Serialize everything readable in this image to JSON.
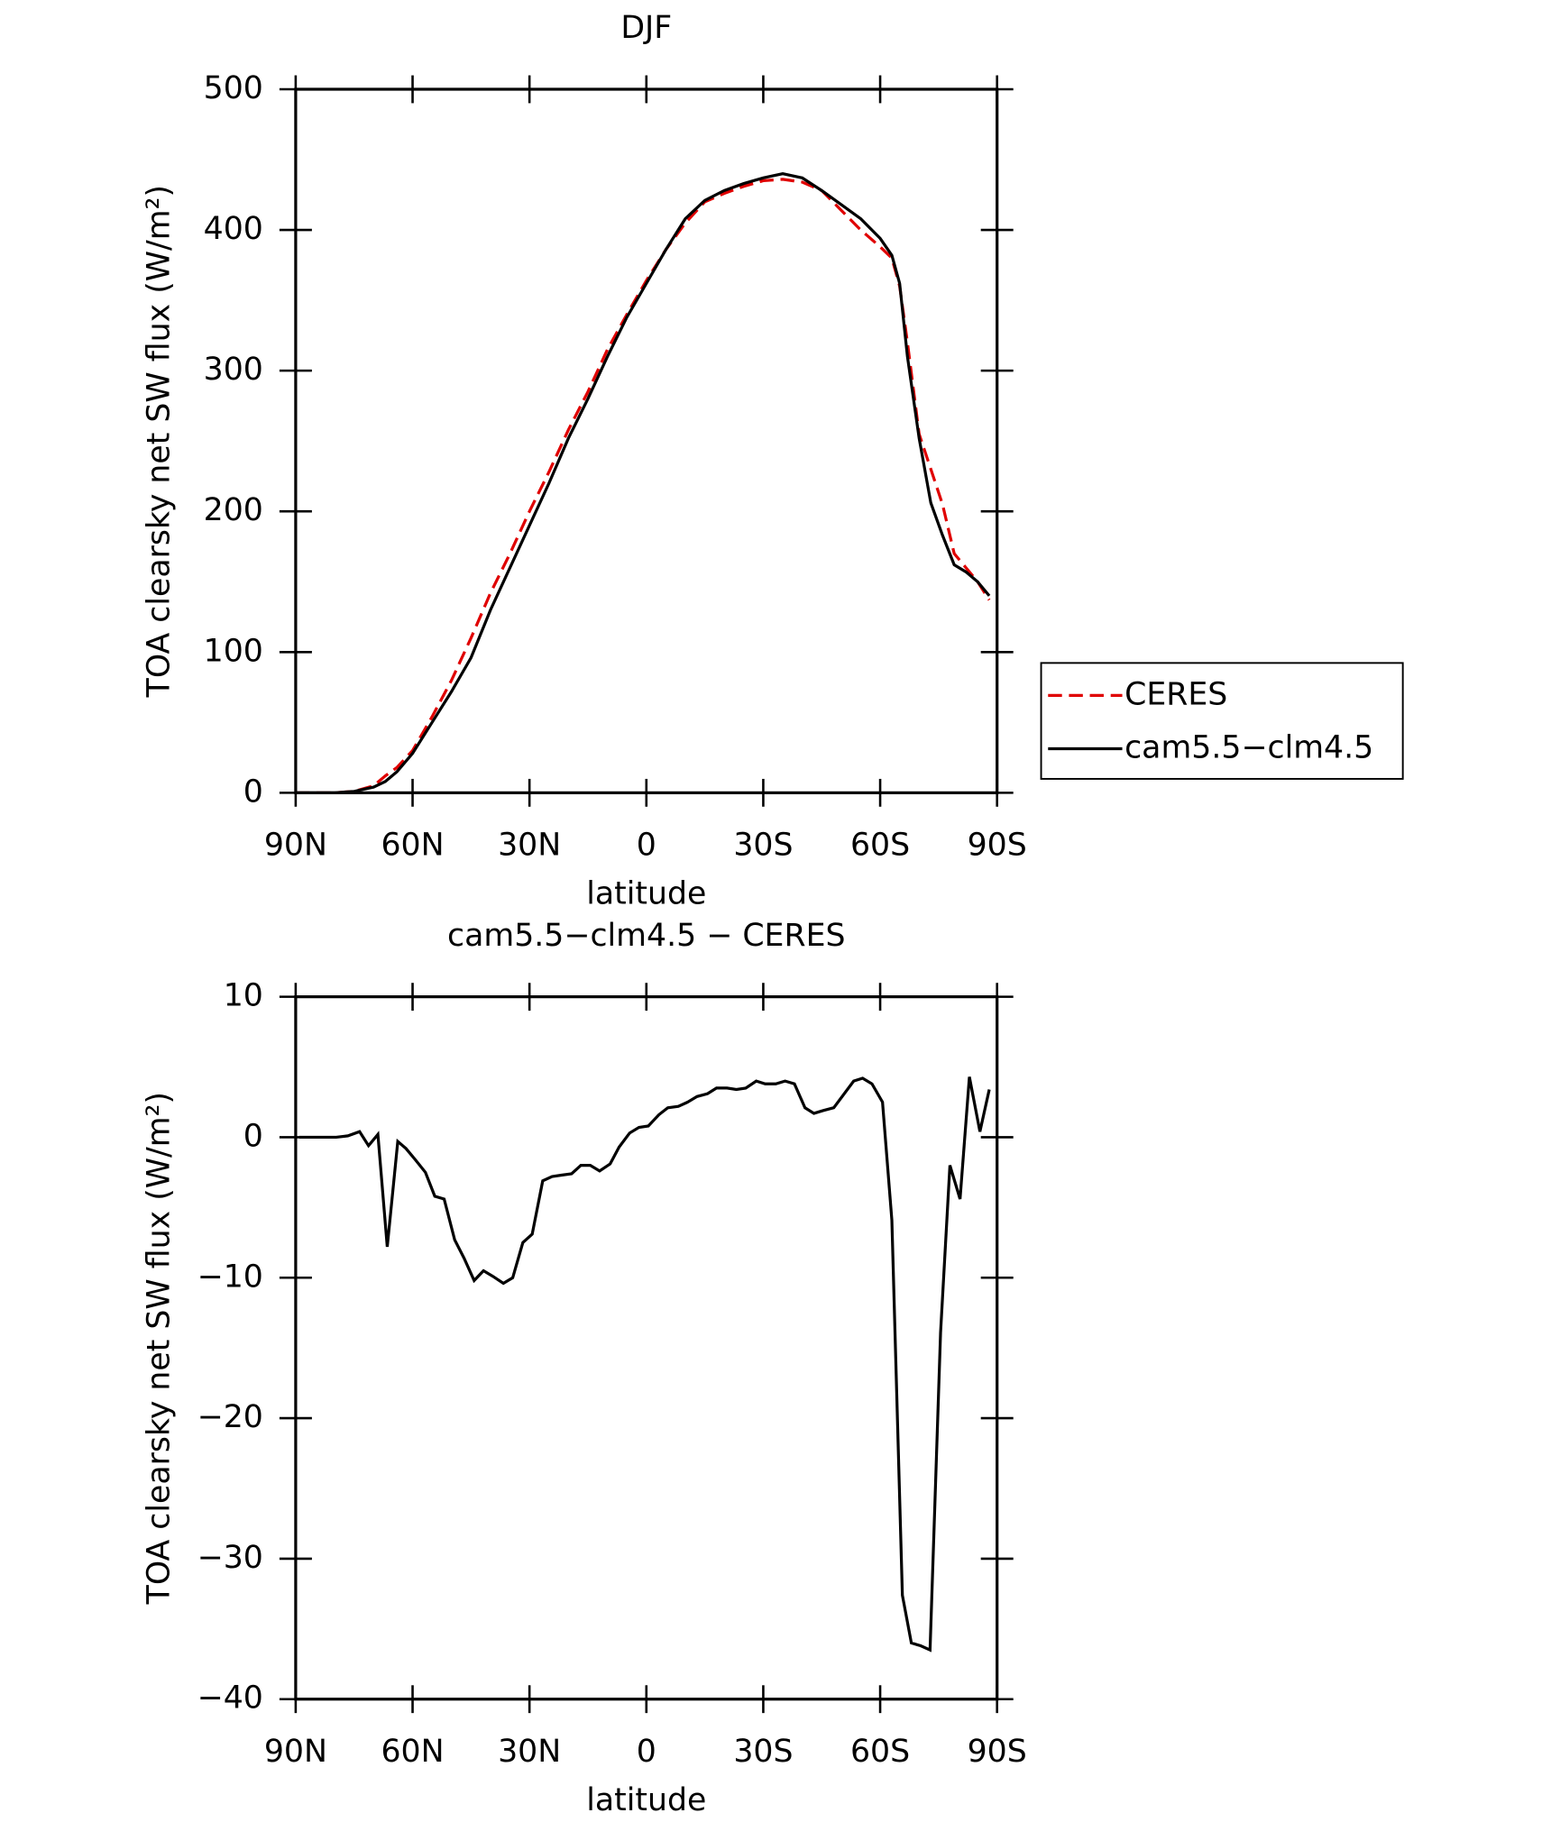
{
  "chart_data": [
    {
      "type": "line",
      "title": "DJF",
      "xlabel": "latitude",
      "ylabel": "TOA clearsky net SW flux (W/m²)",
      "xlim": [
        90,
        -90
      ],
      "xticks": [
        {
          "value": 90,
          "label": "90N"
        },
        {
          "value": 60,
          "label": "60N"
        },
        {
          "value": 30,
          "label": "30N"
        },
        0,
        {
          "value": -30,
          "label": "30S"
        },
        {
          "value": -60,
          "label": "60S"
        },
        {
          "value": -90,
          "label": "90S"
        }
      ],
      "ylim": [
        0,
        500
      ],
      "yticks": [
        0,
        100,
        200,
        300,
        400,
        500
      ],
      "legend": "right",
      "x": [
        90,
        85,
        80,
        75,
        70,
        67,
        64,
        60,
        55,
        50,
        45,
        40,
        35,
        30,
        25,
        20,
        15,
        10,
        5,
        0,
        -5,
        -10,
        -15,
        -20,
        -25,
        -30,
        -35,
        -40,
        -45,
        -50,
        -55,
        -60,
        -63,
        -65,
        -67,
        -70,
        -73,
        -76,
        -79,
        -82,
        -85,
        -88
      ],
      "series": [
        {
          "name": "CERES",
          "color": "#e00000",
          "linestyle": "dashed",
          "values": [
            0,
            0,
            0,
            1,
            5,
            12,
            18,
            30,
            54,
            80,
            110,
            142,
            170,
            200,
            228,
            258,
            285,
            315,
            340,
            364,
            386,
            405,
            420,
            426,
            431,
            435,
            436,
            434,
            428,
            414,
            400,
            388,
            380,
            360,
            320,
            255,
            230,
            205,
            170,
            160,
            150,
            137
          ]
        },
        {
          "name": "cam5.5−clm4.5",
          "color": "#000000",
          "linestyle": "solid",
          "values": [
            0,
            0,
            0,
            1,
            4,
            8,
            15,
            28,
            50,
            72,
            96,
            130,
            160,
            190,
            220,
            252,
            280,
            310,
            338,
            362,
            386,
            408,
            421,
            428,
            433,
            437,
            440,
            437,
            428,
            418,
            408,
            394,
            382,
            362,
            310,
            252,
            206,
            183,
            162,
            157,
            150,
            140
          ]
        }
      ]
    },
    {
      "type": "line",
      "title": "cam5.5−clm4.5 − CERES",
      "xlabel": "latitude",
      "ylabel": "TOA clearsky net SW flux (W/m²)",
      "xlim": [
        90,
        -90
      ],
      "xticks": [
        {
          "value": 90,
          "label": "90N"
        },
        {
          "value": 60,
          "label": "60N"
        },
        {
          "value": 30,
          "label": "30N"
        },
        0,
        {
          "value": -30,
          "label": "30S"
        },
        {
          "value": -60,
          "label": "60S"
        },
        {
          "value": -90,
          "label": "90S"
        }
      ],
      "ylim": [
        -40,
        10
      ],
      "yticks": [
        {
          "value": -40,
          "label": "−40"
        },
        {
          "value": -30,
          "label": "−30"
        },
        {
          "value": -20,
          "label": "−20"
        },
        {
          "value": -10,
          "label": "−10"
        },
        0,
        10
      ],
      "x": [
        89.1,
        79.6,
        76.6,
        73.6,
        71.3,
        68.9,
        66.5,
        63.8,
        61.7,
        59.3,
        56.7,
        54.3,
        51.9,
        49.2,
        46.8,
        44.2,
        41.8,
        39.4,
        36.7,
        34.3,
        31.7,
        29.3,
        26.6,
        24.2,
        21.8,
        19.2,
        16.8,
        14.4,
        12.0,
        9.3,
        7.0,
        4.3,
        1.9,
        -0.5,
        -3.2,
        -5.5,
        -8.2,
        -10.6,
        -13.0,
        -15.7,
        -18.0,
        -20.7,
        -23.1,
        -25.5,
        -28.2,
        -30.5,
        -33.2,
        -35.6,
        -38.0,
        -40.7,
        -43.0,
        -45.4,
        -48.1,
        -53.2,
        -55.5,
        -57.9,
        -60.6,
        -63.0,
        -65.7,
        -68.0,
        -70.4,
        -72.8,
        -75.5,
        -77.9,
        -80.5,
        -82.9,
        -85.6,
        -88.0
      ],
      "series": [
        {
          "name": "cam5.5−clm4.5 − CERES",
          "color": "#000000",
          "linestyle": "solid",
          "values": [
            0,
            0,
            0.1,
            0.4,
            -0.6,
            0.2,
            -7.8,
            -0.3,
            -0.8,
            -1.6,
            -2.5,
            -4.2,
            -4.4,
            -7.3,
            -8.6,
            -10.2,
            -9.5,
            -9.9,
            -10.4,
            -10,
            -7.5,
            -6.9,
            -3.1,
            -2.8,
            -2.7,
            -2.6,
            -2,
            -2,
            -2.4,
            -1.9,
            -0.7,
            0.3,
            0.7,
            0.8,
            1.6,
            2.1,
            2.2,
            2.5,
            2.9,
            3.1,
            3.5,
            3.5,
            3.4,
            3.5,
            4,
            3.8,
            3.8,
            4,
            3.8,
            2.1,
            1.7,
            1.9,
            2.1,
            4,
            4.2,
            3.8,
            2.5,
            -5.9,
            -32.6,
            -36,
            -36.2,
            -36.5,
            -13.9,
            -2,
            -4.4,
            4.3,
            0.4,
            3.4
          ]
        }
      ]
    }
  ]
}
